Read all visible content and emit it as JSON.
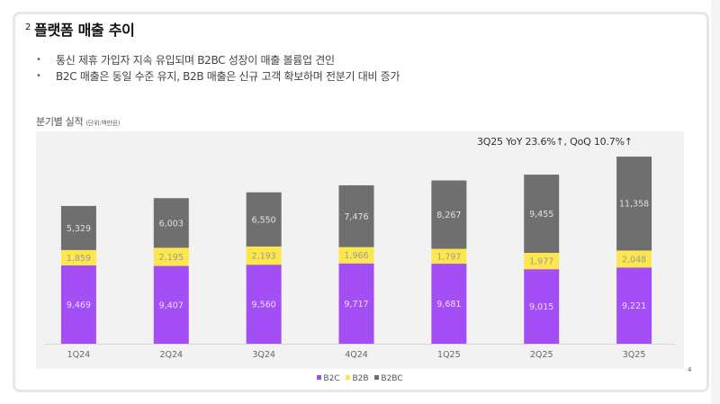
{
  "slide": {
    "section_number": "2",
    "title": "플랫폼 매출 추이",
    "bullets": [
      "통신 제휴 가입자 지속 유입되며 B2BC 성장이 매출 볼륨업 견인",
      "B2C 매출은 동일 수준 유지, B2B 매출은 신규 고객 확보하며 전분기 대비 증가"
    ],
    "bullet_glyph": "•",
    "chart_heading": "분기별 실적",
    "chart_unit": "(단위:백만원)",
    "growth_note": "3Q25 YoY 23.6%↑, QoQ 10.7%↑",
    "page_number": "4"
  },
  "chart_data": {
    "type": "bar",
    "stacked": true,
    "title": "분기별 실적",
    "unit": "백만원",
    "xlabel": "",
    "ylabel": "",
    "categories": [
      "1Q24",
      "2Q24",
      "3Q24",
      "4Q24",
      "1Q25",
      "2Q25",
      "3Q25"
    ],
    "series": [
      {
        "name": "B2C",
        "color": "#a44ff5",
        "values": [
          9469,
          9407,
          9560,
          9717,
          9681,
          9015,
          9221
        ]
      },
      {
        "name": "B2B",
        "color": "#fde74c",
        "values": [
          1859,
          2195,
          2193,
          1966,
          1797,
          1977,
          2048
        ]
      },
      {
        "name": "B2BC",
        "color": "#6f6f6f",
        "values": [
          5329,
          6003,
          6550,
          7476,
          8267,
          9455,
          11358
        ]
      }
    ],
    "data_labels": [
      {
        "series": "B2C",
        "labels": [
          "9,469",
          "9,407",
          "9,560",
          "9,717",
          "9,681",
          "9,015",
          "9,221"
        ]
      },
      {
        "series": "B2B",
        "labels": [
          "1,859",
          "2,195",
          "2,193",
          "1,966",
          "1,797",
          "1,977",
          "2,048"
        ]
      },
      {
        "series": "B2BC",
        "labels": [
          "5,329",
          "6,003",
          "6,550",
          "7,476",
          "8,267",
          "9,455",
          "11,358"
        ]
      }
    ],
    "label_colors": {
      "B2C": "#e8dcff",
      "B2B": "#9a9a9a",
      "B2BC": "#e0e0e0"
    },
    "annotation": "3Q25 YoY 23.6%↑, QoQ 10.7%↑",
    "legend": [
      "B2C",
      "B2B",
      "B2BC"
    ],
    "legend_position": "bottom",
    "ylim": [
      0,
      28000
    ],
    "y_axis_visible": false,
    "grid": false
  }
}
